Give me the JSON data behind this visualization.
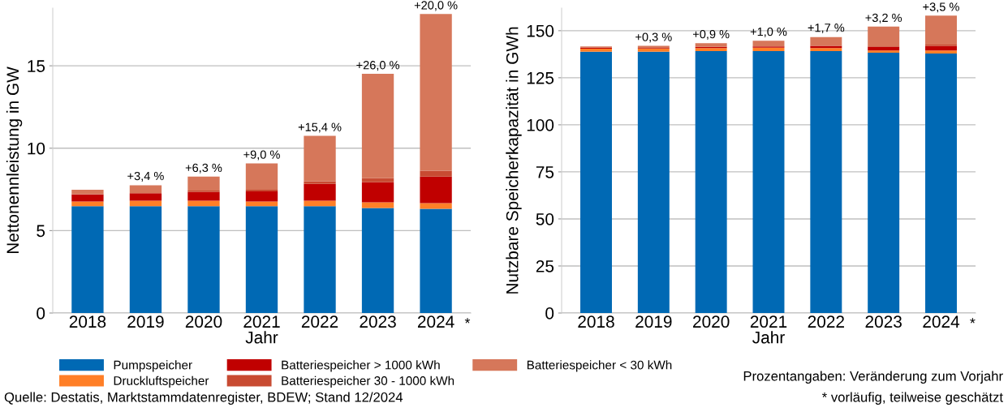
{
  "chart_data": [
    {
      "type": "bar",
      "stacked": true,
      "ylabel": "Nettonennleistung in GW",
      "xlabel": "Jahr",
      "categories": [
        "2018",
        "2019",
        "2020",
        "2021",
        "2022",
        "2023",
        "2024"
      ],
      "series": [
        {
          "name": "Pumpspeicher",
          "color": "#0069b4",
          "values": [
            6.48,
            6.48,
            6.48,
            6.48,
            6.48,
            6.37,
            6.32
          ]
        },
        {
          "name": "Druckluftspeicher",
          "color": "#ff7f27",
          "values": [
            0.29,
            0.34,
            0.34,
            0.29,
            0.34,
            0.35,
            0.35
          ]
        },
        {
          "name": "Batteriespeicher > 1000 kWh",
          "color": "#c00000",
          "values": [
            0.42,
            0.45,
            0.52,
            0.61,
            1.01,
            1.21,
            1.61
          ]
        },
        {
          "name": "Batteriespeicher 30 - 1000 kWh",
          "color": "#c84b32",
          "values": [
            0.02,
            null,
            0.09,
            0.1,
            0.16,
            0.25,
            0.35
          ]
        },
        {
          "name": "Batteriespeicher < 30 kWh",
          "color": "#d6775a",
          "values": [
            0.27,
            0.48,
            0.85,
            1.6,
            2.76,
            6.33,
            9.51
          ]
        }
      ],
      "ylim": [
        0,
        18.5
      ],
      "yticks": [
        0,
        5,
        10,
        15
      ],
      "grid": "y",
      "legend": "bottom",
      "annotations": [
        {
          "text": "+3,4 %",
          "x": "2019",
          "y": 7.78
        },
        {
          "text": "+6,3 %",
          "x": "2020",
          "y": 8.28
        },
        {
          "text": "+9,0 %",
          "x": "2021",
          "y": 9.08
        },
        {
          "text": "+15,4 %",
          "x": "2022",
          "y": 10.75
        },
        {
          "text": "+26,0 %",
          "x": "2023",
          "y": 14.51
        },
        {
          "text": "+20,0 %",
          "x": "2024",
          "y": 18.14
        },
        "*",
        "Quelle: Destatis, Marktstammdatenregister, BDEW; Stand 12/2024"
      ]
    },
    {
      "type": "bar",
      "stacked": true,
      "ylabel": "Nutzbare Speicherkapazität in GWh",
      "xlabel": "Jahr",
      "categories": [
        "2018",
        "2019",
        "2020",
        "2021",
        "2022",
        "2023",
        "2024"
      ],
      "series": [
        {
          "color": "#0069b4",
          "values": [
            138.8,
            138.8,
            139.2,
            139.2,
            139.2,
            138.3,
            137.9
          ]
        },
        {
          "color": "#ff7f27",
          "values": [
            1.7,
            1.7,
            1.6,
            1.8,
            1.6,
            1.2,
            1.6
          ]
        },
        {
          "color": "#c00000",
          "values": [
            0.5,
            0.3,
            0.6,
            0.6,
            1.2,
            1.9,
            2.4
          ]
        },
        {
          "color": "#c84b32",
          "values": [
            null,
            0.1,
            null,
            null,
            null,
            0.3,
            0.7
          ]
        },
        {
          "color": "#d6775a",
          "values": [
            0.6,
            1.1,
            2.0,
            3.1,
            4.6,
            10.5,
            15.4
          ]
        }
      ],
      "ylim": [
        0,
        162
      ],
      "yticks": [
        0,
        25,
        50,
        75,
        100,
        125,
        150
      ],
      "grid": "y",
      "annotations": [
        {
          "text": "+0,3 %",
          "x": "2019",
          "y": 142.0
        },
        {
          "text": "+0,9 %",
          "x": "2020",
          "y": 143.5
        },
        {
          "text": "+1,0 %",
          "x": "2021",
          "y": 144.8
        },
        {
          "text": "+1,7 %",
          "x": "2022",
          "y": 146.9
        },
        {
          "text": "+3,2 %",
          "x": "2023",
          "y": 152.2
        },
        {
          "text": "+3,5 %",
          "x": "2024",
          "y": 158.0
        },
        "*",
        "Prozentangaben: Veränderung zum Vorjahr",
        "* vorläufig, teilweise geschätzt"
      ]
    }
  ]
}
